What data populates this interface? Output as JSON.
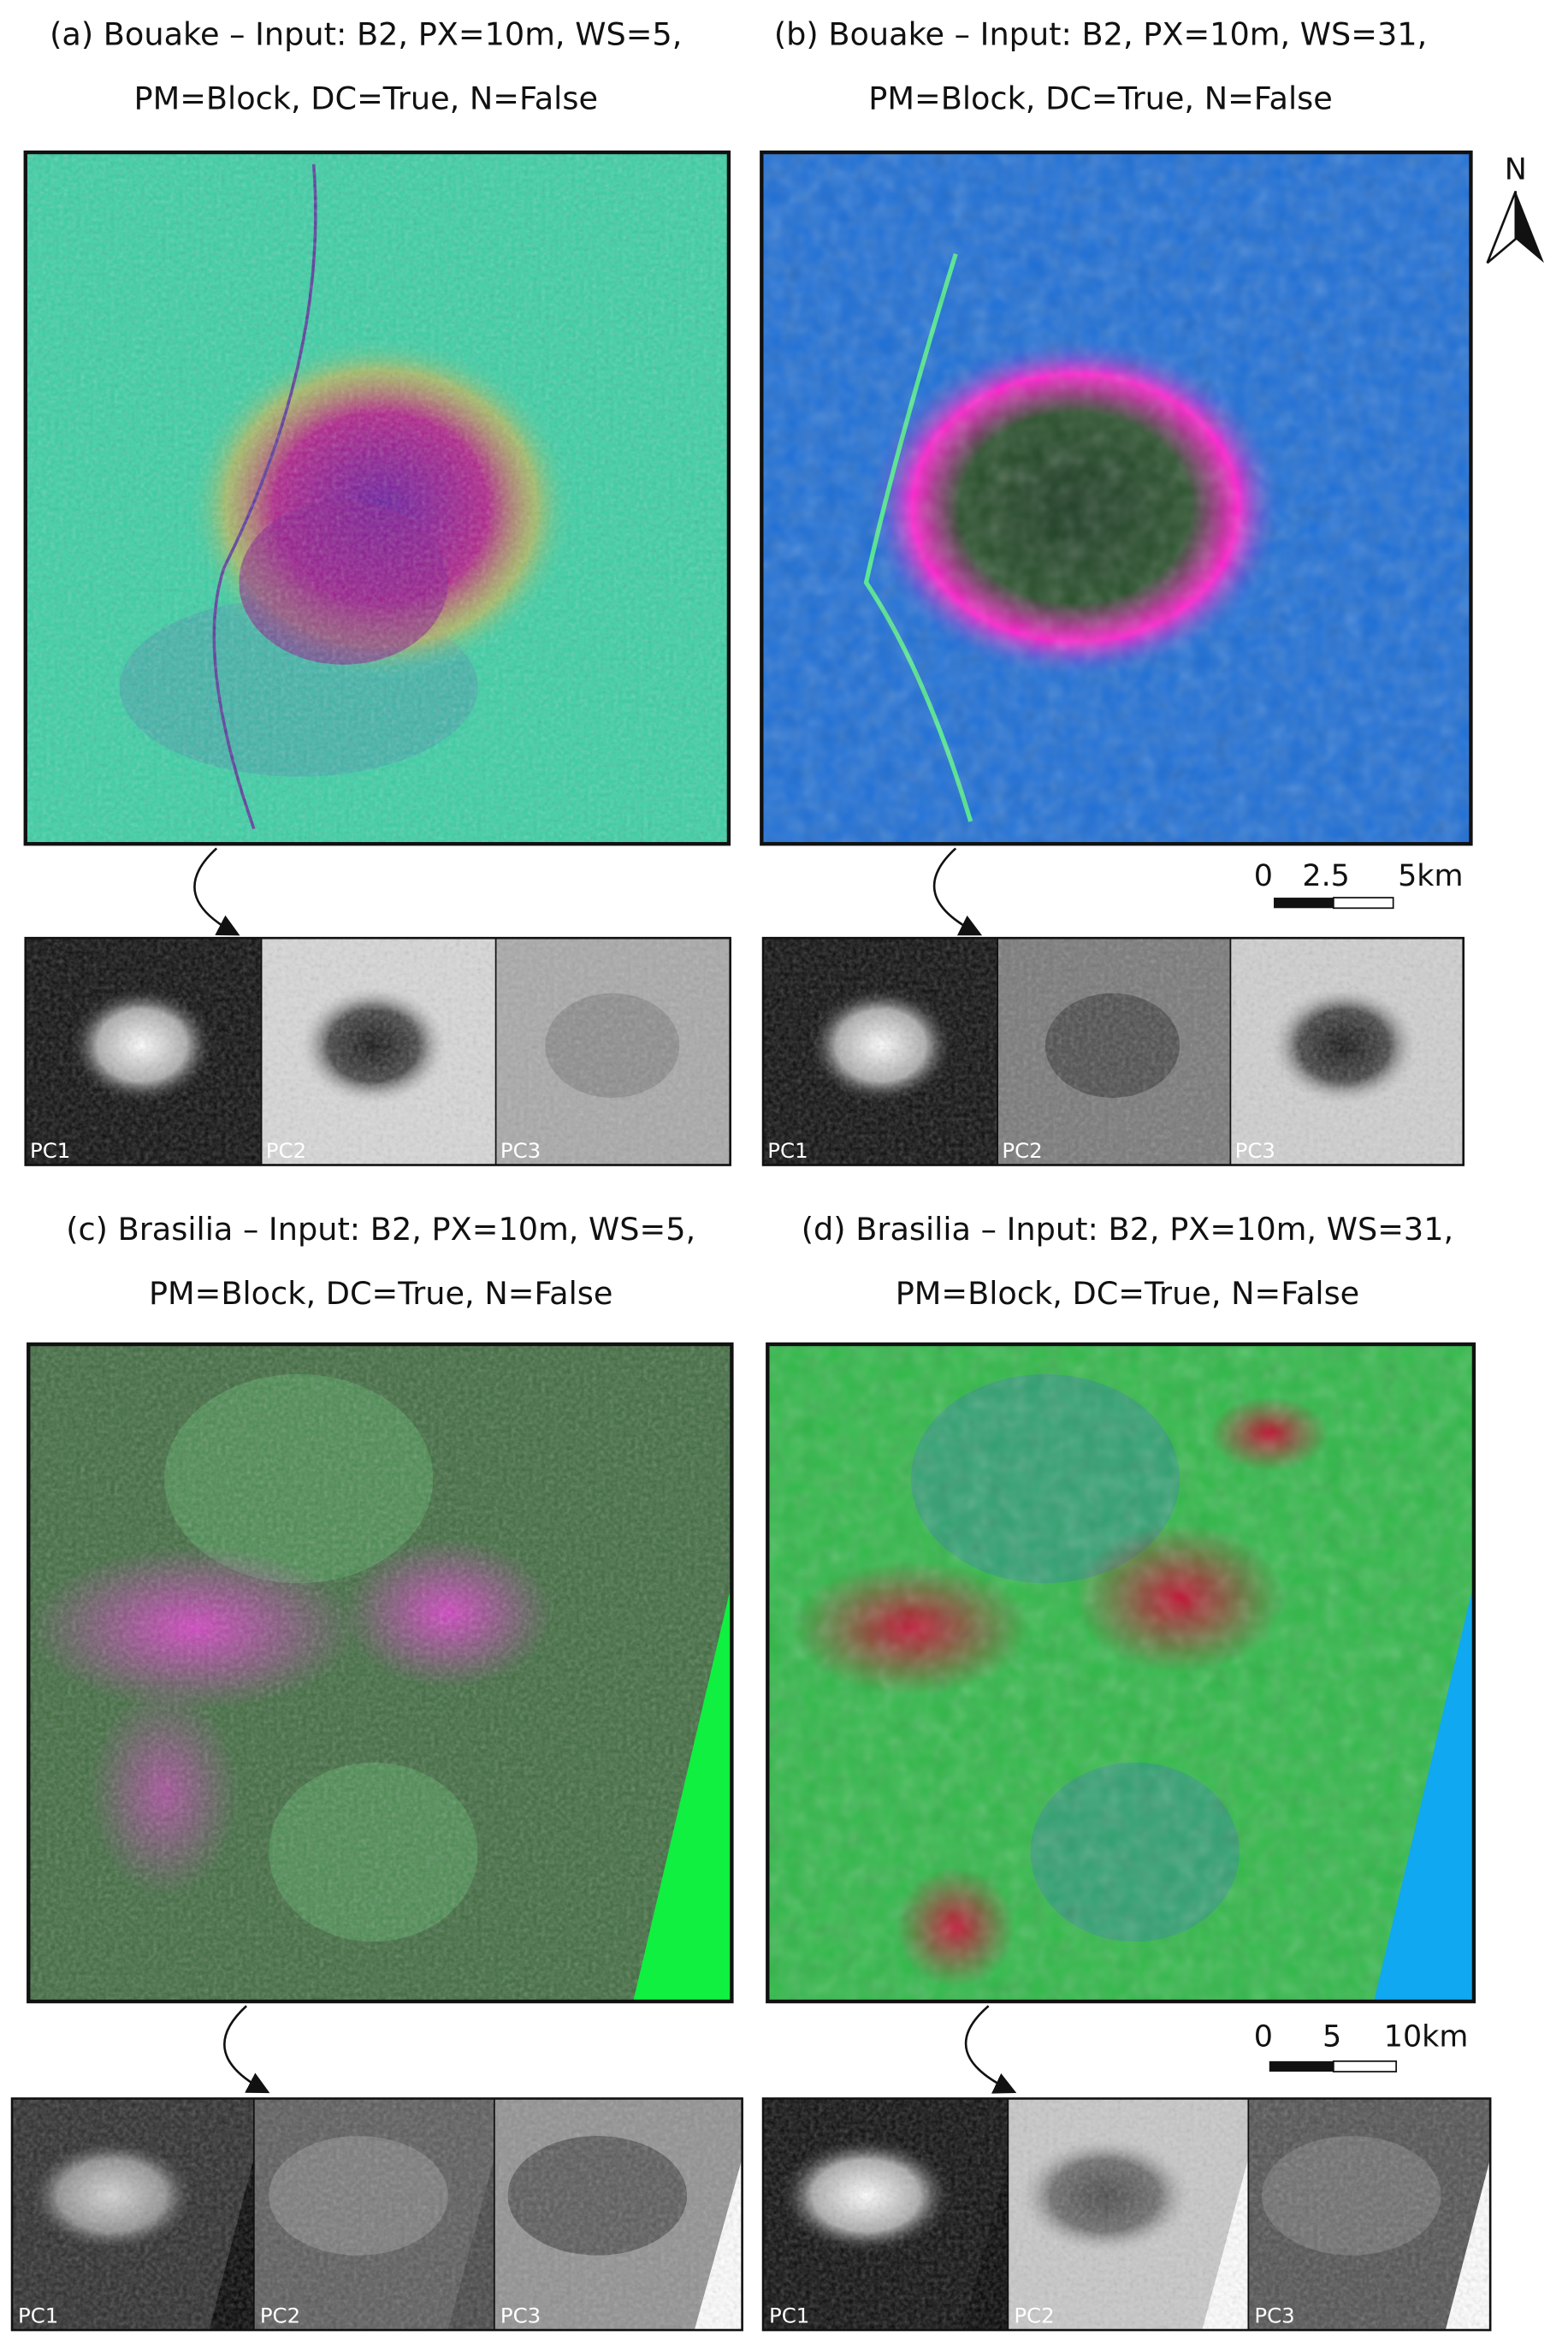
{
  "panels": [
    {
      "title_lines": [
        "(a) Bouake – Input: B2, PX=10m, WS=5,",
        "PM=Block, DC=True, N=False"
      ],
      "thumbnails": [
        "PC1",
        "PC2",
        "PC3"
      ]
    },
    {
      "title_lines": [
        "(b) Bouake – Input: B2, PX=10m, WS=31,",
        "PM=Block, DC=True, N=False"
      ],
      "thumbnails": [
        "PC1",
        "PC2",
        "PC3"
      ]
    },
    {
      "title_lines": [
        "(c) Brasilia – Input: B2, PX=10m, WS=5,",
        "PM=Block, DC=True, N=False"
      ],
      "thumbnails": [
        "PC1",
        "PC2",
        "PC3"
      ]
    },
    {
      "title_lines": [
        "(d) Brasilia – Input: B2, PX=10m, WS=31,",
        "PM=Block, DC=True, N=False"
      ],
      "thumbnails": [
        "PC1",
        "PC2",
        "PC3"
      ]
    }
  ],
  "north_label": "N",
  "scale_bars": [
    {
      "labels": [
        "0",
        "2.5",
        "5km"
      ]
    },
    {
      "labels": [
        "0",
        "5",
        "10km"
      ]
    }
  ]
}
